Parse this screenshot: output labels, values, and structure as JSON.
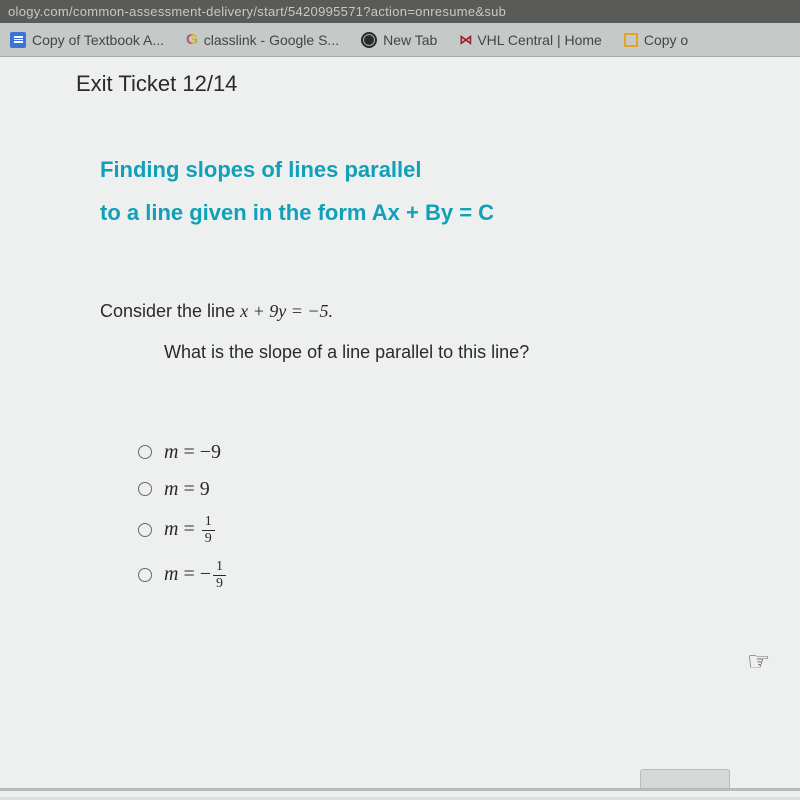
{
  "browser": {
    "url_fragment": "ology.com/common-assessment-delivery/start/5420995571?action=onresume&sub",
    "bookmarks": [
      {
        "label": "Copy of Textbook A...",
        "icon": "docs"
      },
      {
        "label": "classlink - Google S...",
        "icon": "g"
      },
      {
        "label": "New Tab",
        "icon": "world"
      },
      {
        "label": "VHL Central | Home",
        "icon": "vhl"
      },
      {
        "label": "Copy o",
        "icon": "box"
      }
    ]
  },
  "page": {
    "heading": "Exit Ticket 12/14",
    "title_line1": "Finding slopes of lines parallel",
    "title_line2": "to a line given in the form Ax + By = C",
    "title_color": "#11a0b8",
    "problem_prefix": "Consider the line ",
    "problem_equation": "x + 9y = −5.",
    "question": "What is the slope of a line parallel to this line?",
    "options": [
      {
        "display": "m = −9",
        "value": -9
      },
      {
        "display": "m = 9",
        "value": 9
      },
      {
        "display_fraction": {
          "var": "m",
          "sign": "",
          "num": 1,
          "den": 9
        }
      },
      {
        "display_fraction": {
          "var": "m",
          "sign": "−",
          "num": 1,
          "den": 9
        }
      }
    ]
  },
  "styling": {
    "background": "#eef0ef",
    "body_bg": "#dce0df",
    "title_fontsize": 22,
    "text_color": "#2a2a2a",
    "bookmark_bg": "#c5c9c7"
  }
}
